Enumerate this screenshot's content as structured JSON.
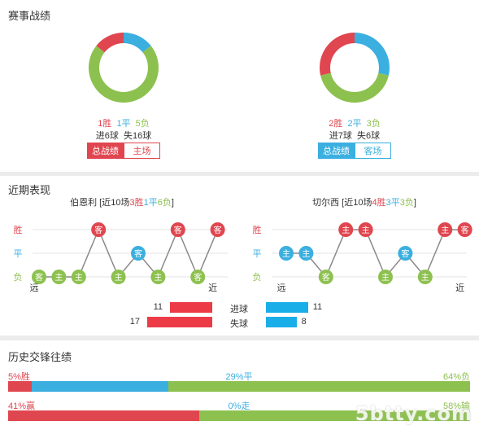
{
  "sections": {
    "record": "赛事战绩",
    "recent": "近期表现",
    "history": "历史交锋往绩"
  },
  "colors": {
    "win": "#e0464f",
    "draw": "#3bafe0",
    "loss": "#8dc14f",
    "bar_red": "#ec3b47",
    "bar_blue": "#1aaee8",
    "grid": "#dddddd"
  },
  "record": {
    "left": {
      "win": "1胜",
      "draw": "1平",
      "loss": "5负",
      "goals": "进6球  失16球",
      "buttons": [
        "总战绩",
        "主场"
      ],
      "pie": {
        "win": 1,
        "draw": 1,
        "loss": 5
      }
    },
    "right": {
      "win": "2胜",
      "draw": "2平",
      "loss": "3负",
      "goals": "进7球  失6球",
      "buttons": [
        "总战绩",
        "客场"
      ],
      "pie": {
        "win": 2,
        "draw": 2,
        "loss": 3
      }
    }
  },
  "recent": {
    "left": {
      "team": "伯恩利",
      "summary_prefix": " [近10场",
      "wins": "3胜",
      "draws": "1平",
      "losses": "6负",
      "summary_suffix": "]",
      "y_labels": [
        "胜",
        "平",
        "负"
      ],
      "x_far": "远",
      "x_near": "近",
      "results": [
        "L",
        "L",
        "L",
        "W",
        "L",
        "D",
        "L",
        "W",
        "L",
        "W"
      ],
      "venues": [
        "客",
        "主",
        "主",
        "客",
        "主",
        "客",
        "主",
        "客",
        "客",
        "客"
      ]
    },
    "right": {
      "team": "切尔西",
      "summary_prefix": " [近10场",
      "wins": "4胜",
      "draws": "3平",
      "losses": "3负",
      "summary_suffix": "]",
      "y_labels": [
        "胜",
        "平",
        "负"
      ],
      "x_far": "远",
      "x_near": "近",
      "results": [
        "D",
        "D",
        "L",
        "W",
        "W",
        "L",
        "D",
        "L",
        "W",
        "W"
      ],
      "venues": [
        "主",
        "主",
        "客",
        "主",
        "主",
        "主",
        "客",
        "主",
        "主",
        "客"
      ]
    },
    "goals": {
      "label": "进球",
      "left_value": "11",
      "right_value": "11",
      "left_num": 11,
      "right_num": 11
    },
    "conceded": {
      "label": "失球",
      "left_value": "17",
      "right_value": "8",
      "left_num": 17,
      "right_num": 8
    }
  },
  "history": {
    "bar1": {
      "left": "5%胜",
      "mid": "29%平",
      "right": "64%负",
      "win": 5,
      "draw": 29,
      "loss": 64
    },
    "bar2": {
      "left": "41%赢",
      "mid": "0%走",
      "right": "58%输",
      "win": 41,
      "draw": 0,
      "loss": 58
    }
  },
  "watermark": "5btty.com"
}
